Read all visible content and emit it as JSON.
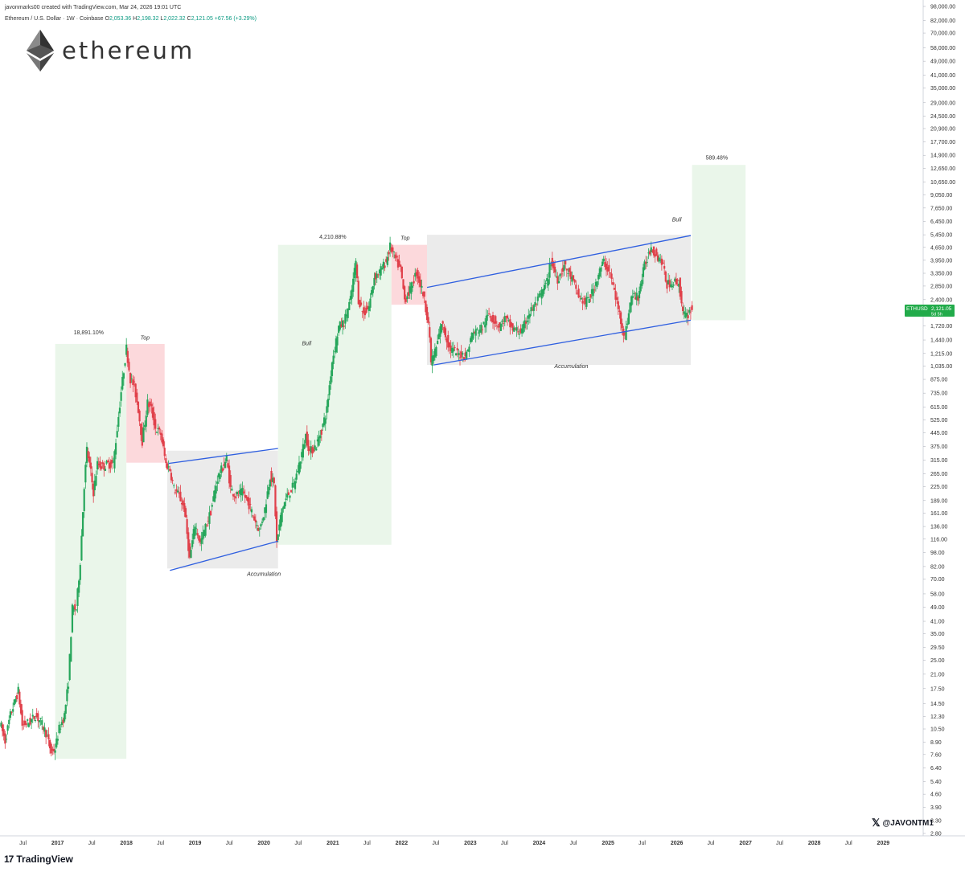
{
  "header": {
    "created": "javonmarks00 created with TradingView.com, Mar 24, 2026 19:01 UTC",
    "symbol": "Ethereum / U.S. Dollar · 1W · Coinbase",
    "o_label": "O",
    "o_value": "2,053.36",
    "h_label": "H",
    "h_value": "2,198.32",
    "l_label": "L",
    "l_value": "2,022.32",
    "c_label": "C",
    "c_value": "2,121.05",
    "change": "+67.56 (+3.29%)"
  },
  "logo": {
    "text": "ethereum"
  },
  "footer": {
    "brand": "TradingView",
    "watermark": "@JAVONTM1"
  },
  "price_tag": {
    "symbol": "ETHUSD",
    "price": "2,121.05",
    "countdown": "5d 5h"
  },
  "colors": {
    "up": "#26a65b",
    "down": "#e0404a",
    "channel": "#2f5fe0",
    "bull_zone": "#eaf6ea",
    "top_zone": "#fcd9dc",
    "accum_zone": "#ebebeb",
    "tag": "#22ab4a"
  },
  "chart_data": {
    "type": "candlestick",
    "y_scale": "log",
    "ylim": [
      2.8,
      98000
    ],
    "xlim": [
      "2016-03-01",
      "2029-08-01"
    ],
    "y_ticks": [
      {
        "v": 98000,
        "l": "98,000.00"
      },
      {
        "v": 82000,
        "l": "82,000.00"
      },
      {
        "v": 70000,
        "l": "70,000.00"
      },
      {
        "v": 58000,
        "l": "58,000.00"
      },
      {
        "v": 49000,
        "l": "49,000.00"
      },
      {
        "v": 41000,
        "l": "41,000.00"
      },
      {
        "v": 35000,
        "l": "35,000.00"
      },
      {
        "v": 29000,
        "l": "29,000.00"
      },
      {
        "v": 24500,
        "l": "24,500.00"
      },
      {
        "v": 20900,
        "l": "20,900.00"
      },
      {
        "v": 17700,
        "l": "17,700.00"
      },
      {
        "v": 14900,
        "l": "14,900.00"
      },
      {
        "v": 12650,
        "l": "12,650.00"
      },
      {
        "v": 10650,
        "l": "10,650.00"
      },
      {
        "v": 9050,
        "l": "9,050.00"
      },
      {
        "v": 7650,
        "l": "7,650.00"
      },
      {
        "v": 6450,
        "l": "6,450.00"
      },
      {
        "v": 5450,
        "l": "5,450.00"
      },
      {
        "v": 4650,
        "l": "4,650.00"
      },
      {
        "v": 3950,
        "l": "3,950.00"
      },
      {
        "v": 3350,
        "l": "3,350.00"
      },
      {
        "v": 2850,
        "l": "2,850.00"
      },
      {
        "v": 2400,
        "l": "2,400.00"
      },
      {
        "v": 1720,
        "l": "1,720.00"
      },
      {
        "v": 1440,
        "l": "1,440.00"
      },
      {
        "v": 1215,
        "l": "1,215.00"
      },
      {
        "v": 1035,
        "l": "1,035.00"
      },
      {
        "v": 875,
        "l": "875.00"
      },
      {
        "v": 735,
        "l": "735.00"
      },
      {
        "v": 615,
        "l": "615.00"
      },
      {
        "v": 525,
        "l": "525.00"
      },
      {
        "v": 445,
        "l": "445.00"
      },
      {
        "v": 375,
        "l": "375.00"
      },
      {
        "v": 315,
        "l": "315.00"
      },
      {
        "v": 265,
        "l": "265.00"
      },
      {
        "v": 225,
        "l": "225.00"
      },
      {
        "v": 189,
        "l": "189.00"
      },
      {
        "v": 161,
        "l": "161.00"
      },
      {
        "v": 136,
        "l": "136.00"
      },
      {
        "v": 116,
        "l": "116.00"
      },
      {
        "v": 98,
        "l": "98.00"
      },
      {
        "v": 82,
        "l": "82.00"
      },
      {
        "v": 70,
        "l": "70.00"
      },
      {
        "v": 58,
        "l": "58.00"
      },
      {
        "v": 49,
        "l": "49.00"
      },
      {
        "v": 41,
        "l": "41.00"
      },
      {
        "v": 35,
        "l": "35.00"
      },
      {
        "v": 29.5,
        "l": "29.50"
      },
      {
        "v": 25,
        "l": "25.00"
      },
      {
        "v": 21,
        "l": "21.00"
      },
      {
        "v": 17.5,
        "l": "17.50"
      },
      {
        "v": 14.5,
        "l": "14.50"
      },
      {
        "v": 12.3,
        "l": "12.30"
      },
      {
        "v": 10.5,
        "l": "10.50"
      },
      {
        "v": 8.9,
        "l": "8.90"
      },
      {
        "v": 7.6,
        "l": "7.60"
      },
      {
        "v": 6.4,
        "l": "6.40"
      },
      {
        "v": 5.4,
        "l": "5.40"
      },
      {
        "v": 4.6,
        "l": "4.60"
      },
      {
        "v": 3.9,
        "l": "3.90"
      },
      {
        "v": 3.3,
        "l": "3.30"
      },
      {
        "v": 2.8,
        "l": "2.80"
      }
    ],
    "x_ticks": [
      {
        "d": "2016-07-01",
        "l": "Jul",
        "bold": false
      },
      {
        "d": "2017-01-01",
        "l": "2017",
        "bold": true
      },
      {
        "d": "2017-07-01",
        "l": "Jul",
        "bold": false
      },
      {
        "d": "2018-01-01",
        "l": "2018",
        "bold": true
      },
      {
        "d": "2018-07-01",
        "l": "Jul",
        "bold": false
      },
      {
        "d": "2019-01-01",
        "l": "2019",
        "bold": true
      },
      {
        "d": "2019-07-01",
        "l": "Jul",
        "bold": false
      },
      {
        "d": "2020-01-01",
        "l": "2020",
        "bold": true
      },
      {
        "d": "2020-07-01",
        "l": "Jul",
        "bold": false
      },
      {
        "d": "2021-01-01",
        "l": "2021",
        "bold": true
      },
      {
        "d": "2021-07-01",
        "l": "Jul",
        "bold": false
      },
      {
        "d": "2022-01-01",
        "l": "2022",
        "bold": true
      },
      {
        "d": "2022-07-01",
        "l": "Jul",
        "bold": false
      },
      {
        "d": "2023-01-01",
        "l": "2023",
        "bold": true
      },
      {
        "d": "2023-07-01",
        "l": "Jul",
        "bold": false
      },
      {
        "d": "2024-01-01",
        "l": "2024",
        "bold": true
      },
      {
        "d": "2024-07-01",
        "l": "Jul",
        "bold": false
      },
      {
        "d": "2025-01-01",
        "l": "2025",
        "bold": true
      },
      {
        "d": "2025-07-01",
        "l": "Jul",
        "bold": false
      },
      {
        "d": "2026-01-01",
        "l": "2026",
        "bold": true
      },
      {
        "d": "2026-07-01",
        "l": "Jul",
        "bold": false
      },
      {
        "d": "2027-01-01",
        "l": "2027",
        "bold": true
      },
      {
        "d": "2027-07-01",
        "l": "Jul",
        "bold": false
      },
      {
        "d": "2028-01-01",
        "l": "2028",
        "bold": true
      },
      {
        "d": "2028-07-01",
        "l": "Jul",
        "bold": false
      },
      {
        "d": "2029-01-01",
        "l": "2029",
        "bold": true
      }
    ],
    "price_path": [
      [
        "2016-03-07",
        11.5
      ],
      [
        "2016-04-04",
        9.0
      ],
      [
        "2016-05-02",
        12.5
      ],
      [
        "2016-06-13",
        17.0
      ],
      [
        "2016-07-04",
        11.0
      ],
      [
        "2016-08-15",
        11.5
      ],
      [
        "2016-09-12",
        12.5
      ],
      [
        "2016-10-10",
        11.5
      ],
      [
        "2016-11-07",
        10.0
      ],
      [
        "2016-12-05",
        7.8
      ],
      [
        "2016-12-26",
        8.2
      ],
      [
        "2017-01-16",
        10.5
      ],
      [
        "2017-02-13",
        12.5
      ],
      [
        "2017-03-06",
        19.0
      ],
      [
        "2017-03-27",
        48.0
      ],
      [
        "2017-04-17",
        48.0
      ],
      [
        "2017-05-08",
        88.0
      ],
      [
        "2017-05-29",
        230.0
      ],
      [
        "2017-06-12",
        360.0
      ],
      [
        "2017-07-03",
        270.0
      ],
      [
        "2017-07-17",
        210.0
      ],
      [
        "2017-08-07",
        300.0
      ],
      [
        "2017-09-04",
        290.0
      ],
      [
        "2017-10-02",
        300.0
      ],
      [
        "2017-10-30",
        300.0
      ],
      [
        "2017-11-20",
        470.0
      ],
      [
        "2017-12-11",
        750.0
      ],
      [
        "2018-01-08",
        1300.0
      ],
      [
        "2018-01-29",
        880.0
      ],
      [
        "2018-02-19",
        800.0
      ],
      [
        "2018-03-12",
        600.0
      ],
      [
        "2018-04-02",
        400.0
      ],
      [
        "2018-04-30",
        650.0
      ],
      [
        "2018-05-21",
        600.0
      ],
      [
        "2018-06-11",
        470.0
      ],
      [
        "2018-07-09",
        440.0
      ],
      [
        "2018-08-06",
        300.0
      ],
      [
        "2018-08-27",
        280.0
      ],
      [
        "2018-09-17",
        220.0
      ],
      [
        "2018-10-15",
        200.0
      ],
      [
        "2018-11-12",
        170.0
      ],
      [
        "2018-12-10",
        90.0
      ],
      [
        "2019-01-07",
        140.0
      ],
      [
        "2019-02-04",
        110.0
      ],
      [
        "2019-03-04",
        135.0
      ],
      [
        "2019-04-01",
        165.0
      ],
      [
        "2019-05-06",
        250.0
      ],
      [
        "2019-06-24",
        320.0
      ],
      [
        "2019-07-15",
        220.0
      ],
      [
        "2019-08-12",
        200.0
      ],
      [
        "2019-09-16",
        210.0
      ],
      [
        "2019-10-21",
        180.0
      ],
      [
        "2019-11-18",
        150.0
      ],
      [
        "2019-12-16",
        130.0
      ],
      [
        "2020-01-13",
        170.0
      ],
      [
        "2020-02-10",
        260.0
      ],
      [
        "2020-03-02",
        230.0
      ],
      [
        "2020-03-16",
        110.0
      ],
      [
        "2020-04-13",
        170.0
      ],
      [
        "2020-05-11",
        200.0
      ],
      [
        "2020-06-15",
        230.0
      ],
      [
        "2020-07-20",
        320.0
      ],
      [
        "2020-08-17",
        430.0
      ],
      [
        "2020-09-07",
        350.0
      ],
      [
        "2020-10-12",
        380.0
      ],
      [
        "2020-11-09",
        460.0
      ],
      [
        "2020-12-07",
        600.0
      ],
      [
        "2021-01-04",
        1100.0
      ],
      [
        "2021-02-08",
        1700.0
      ],
      [
        "2021-03-08",
        1800.0
      ],
      [
        "2021-04-12",
        2400.0
      ],
      [
        "2021-05-10",
        3900.0
      ],
      [
        "2021-05-24",
        2400.0
      ],
      [
        "2021-06-21",
        2000.0
      ],
      [
        "2021-07-19",
        2200.0
      ],
      [
        "2021-08-16",
        3200.0
      ],
      [
        "2021-09-13",
        3400.0
      ],
      [
        "2021-10-18",
        3900.0
      ],
      [
        "2021-11-08",
        4700.0
      ],
      [
        "2021-12-06",
        4000.0
      ],
      [
        "2022-01-03",
        3500.0
      ],
      [
        "2022-01-24",
        2400.0
      ],
      [
        "2022-02-21",
        2700.0
      ],
      [
        "2022-03-28",
        3400.0
      ],
      [
        "2022-05-02",
        2600.0
      ],
      [
        "2022-05-30",
        1800.0
      ],
      [
        "2022-06-13",
        1100.0
      ],
      [
        "2022-07-11",
        1300.0
      ],
      [
        "2022-08-08",
        1800.0
      ],
      [
        "2022-09-19",
        1300.0
      ],
      [
        "2022-11-07",
        1200.0
      ],
      [
        "2022-12-19",
        1200.0
      ],
      [
        "2023-01-16",
        1550.0
      ],
      [
        "2023-03-13",
        1700.0
      ],
      [
        "2023-04-17",
        2000.0
      ],
      [
        "2023-06-12",
        1700.0
      ],
      [
        "2023-07-10",
        1900.0
      ],
      [
        "2023-08-21",
        1650.0
      ],
      [
        "2023-10-09",
        1600.0
      ],
      [
        "2023-11-13",
        2000.0
      ],
      [
        "2023-12-25",
        2300.0
      ],
      [
        "2024-02-19",
        3000.0
      ],
      [
        "2024-03-11",
        3900.0
      ],
      [
        "2024-04-15",
        3100.0
      ],
      [
        "2024-05-20",
        3700.0
      ],
      [
        "2024-07-01",
        3100.0
      ],
      [
        "2024-08-05",
        2500.0
      ],
      [
        "2024-09-09",
        2300.0
      ],
      [
        "2024-10-14",
        2600.0
      ],
      [
        "2024-11-18",
        3300.0
      ],
      [
        "2024-12-16",
        3900.0
      ],
      [
        "2025-01-20",
        3300.0
      ],
      [
        "2025-02-24",
        2300.0
      ],
      [
        "2025-04-07",
        1500.0
      ],
      [
        "2025-05-12",
        2500.0
      ],
      [
        "2025-06-16",
        2500.0
      ],
      [
        "2025-07-21",
        3700.0
      ],
      [
        "2025-08-25",
        4700.0
      ],
      [
        "2025-09-22",
        4200.0
      ],
      [
        "2025-10-20",
        3900.0
      ],
      [
        "2025-11-17",
        2900.0
      ],
      [
        "2025-12-15",
        3000.0
      ],
      [
        "2026-01-19",
        3000.0
      ],
      [
        "2026-02-09",
        2000.0
      ],
      [
        "2026-03-02",
        1950.0
      ],
      [
        "2026-03-23",
        2121.0
      ]
    ],
    "zones": [
      {
        "type": "bull",
        "x0": "2016-12-19",
        "x1": "2018-01-01",
        "y0": 7.2,
        "y1": 1370
      },
      {
        "type": "top",
        "x0": "2018-01-01",
        "x1": "2018-07-23",
        "y0": 305,
        "y1": 1370
      },
      {
        "type": "accum",
        "x0": "2018-08-06",
        "x1": "2020-03-16",
        "y0": 80,
        "y1": 355
      },
      {
        "type": "bull",
        "x0": "2020-03-16",
        "x1": "2021-11-08",
        "y0": 108,
        "y1": 4800
      },
      {
        "type": "top",
        "x0": "2021-11-08",
        "x1": "2022-05-16",
        "y0": 2250,
        "y1": 4800
      },
      {
        "type": "accum",
        "x0": "2022-05-16",
        "x1": "2026-03-16",
        "y0": 1050,
        "y1": 5450
      },
      {
        "type": "bull",
        "x0": "2026-03-23",
        "x1": "2027-01-01",
        "y0": 1850,
        "y1": 13200
      }
    ],
    "channels": [
      {
        "x0": "2018-08-13",
        "y0": 302,
        "x1": "2020-03-16",
        "y1": 365
      },
      {
        "x0": "2018-08-20",
        "y0": 78,
        "x1": "2020-03-16",
        "y1": 113
      },
      {
        "x0": "2022-05-16",
        "y0": 2800,
        "x1": "2026-03-16",
        "y1": 5400
      },
      {
        "x0": "2022-06-20",
        "y0": 1050,
        "x1": "2026-03-16",
        "y1": 1850
      }
    ],
    "annotations": [
      {
        "text": "18,891.10%",
        "x": "2017-06-15",
        "y": 1550,
        "italic": false
      },
      {
        "text": "Top",
        "x": "2018-04-10",
        "y": 1450,
        "italic": true
      },
      {
        "text": "Accumulation",
        "x": "2020-01-01",
        "y": 73,
        "italic": true
      },
      {
        "text": "Bull",
        "x": "2020-08-15",
        "y": 1350,
        "italic": true
      },
      {
        "text": "4,210.88%",
        "x": "2021-01-01",
        "y": 5200,
        "italic": false
      },
      {
        "text": "Top",
        "x": "2022-01-20",
        "y": 5100,
        "italic": true
      },
      {
        "text": "Accumulation",
        "x": "2024-06-20",
        "y": 1010,
        "italic": true
      },
      {
        "text": "Bull",
        "x": "2026-01-01",
        "y": 6450,
        "italic": true
      },
      {
        "text": "589.48%",
        "x": "2026-08-01",
        "y": 14100,
        "italic": false
      }
    ]
  }
}
